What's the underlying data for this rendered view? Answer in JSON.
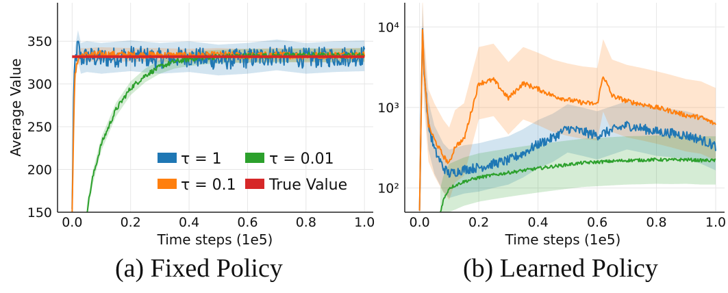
{
  "chart_data": [
    {
      "type": "line",
      "caption": "(a) Fixed Policy",
      "xlabel": "Time steps (1e5)",
      "ylabel": "Average Value",
      "xlim": [
        -0.05,
        1.03
      ],
      "ylim": [
        150,
        395
      ],
      "xticks": [
        0.0,
        0.2,
        0.4,
        0.6,
        0.8,
        1.0
      ],
      "xtick_labels": [
        "0.0",
        "0.2",
        "0.4",
        "0.6",
        "0.8",
        "1.0"
      ],
      "yticks": [
        150,
        200,
        250,
        300,
        350
      ],
      "ytick_labels": [
        "150",
        "200",
        "250",
        "300",
        "350"
      ],
      "grid": true,
      "legend": {
        "placement": "lower-right",
        "entries": [
          {
            "label": "τ = 1",
            "color": "#1f77b4"
          },
          {
            "label": "τ = 0.01",
            "color": "#2ca02c"
          },
          {
            "label": "τ = 0.1",
            "color": "#ff7f0e"
          },
          {
            "label": "True Value",
            "color": "#d62728"
          }
        ]
      },
      "series": [
        {
          "name": "τ = 1",
          "color": "#1f77b4",
          "x": [
            0.0,
            0.005,
            0.01,
            0.02,
            0.03,
            0.05,
            0.1,
            0.2,
            0.3,
            0.4,
            0.5,
            0.6,
            0.7,
            0.8,
            0.9,
            1.0
          ],
          "y": [
            150,
            280,
            325,
            345,
            330,
            332,
            330,
            333,
            330,
            332,
            328,
            330,
            334,
            330,
            332,
            333
          ]
        },
        {
          "name": "τ = 0.1",
          "color": "#ff7f0e",
          "x": [
            0.0,
            0.005,
            0.01,
            0.02,
            0.03,
            0.05,
            0.1,
            0.2,
            0.3,
            0.4,
            0.5,
            0.6,
            0.7,
            0.8,
            0.9,
            1.0
          ],
          "y": [
            150,
            250,
            310,
            330,
            334,
            334,
            335,
            334,
            334,
            333,
            334,
            333,
            334,
            333,
            334,
            334
          ]
        },
        {
          "name": "τ = 0.01",
          "color": "#2ca02c",
          "x": [
            0.05,
            0.07,
            0.1,
            0.15,
            0.2,
            0.25,
            0.3,
            0.35,
            0.4,
            0.45,
            0.5,
            0.6,
            0.7,
            0.8,
            0.9,
            1.0
          ],
          "y": [
            150,
            190,
            230,
            270,
            295,
            310,
            320,
            326,
            329,
            331,
            332,
            333,
            333,
            334,
            333,
            334
          ]
        },
        {
          "name": "True Value",
          "color": "#d62728",
          "x": [
            0.0,
            1.0
          ],
          "y": [
            332,
            332
          ]
        }
      ]
    },
    {
      "type": "line",
      "caption": "(b) Learned Policy",
      "xlabel": "Time steps (1e5)",
      "ylabel": "",
      "yscale": "log",
      "xlim": [
        -0.05,
        1.03
      ],
      "ylim": [
        50,
        20000
      ],
      "xticks": [
        0.0,
        0.2,
        0.4,
        0.6,
        0.8,
        1.0
      ],
      "xtick_labels": [
        "0.0",
        "0.2",
        "0.4",
        "0.6",
        "0.8",
        "1.0"
      ],
      "yticks": [
        100,
        1000,
        10000
      ],
      "ytick_labels": [
        "10²",
        "10³",
        "10⁴"
      ],
      "grid": true,
      "series": [
        {
          "name": "τ = 1",
          "color": "#1f77b4",
          "x": [
            0.0,
            0.01,
            0.015,
            0.03,
            0.05,
            0.08,
            0.1,
            0.15,
            0.2,
            0.25,
            0.3,
            0.35,
            0.4,
            0.45,
            0.5,
            0.55,
            0.6,
            0.65,
            0.7,
            0.75,
            0.8,
            0.85,
            0.9,
            0.95,
            1.0
          ],
          "y": [
            50,
            10000,
            3000,
            600,
            300,
            180,
            150,
            170,
            180,
            200,
            220,
            270,
            350,
            420,
            550,
            500,
            450,
            520,
            600,
            550,
            500,
            480,
            450,
            400,
            330
          ]
        },
        {
          "name": "τ = 0.1",
          "color": "#ff7f0e",
          "x": [
            0.0,
            0.01,
            0.015,
            0.03,
            0.05,
            0.08,
            0.1,
            0.12,
            0.15,
            0.2,
            0.25,
            0.3,
            0.35,
            0.4,
            0.45,
            0.5,
            0.55,
            0.6,
            0.62,
            0.65,
            0.7,
            0.75,
            0.8,
            0.85,
            0.9,
            0.95,
            1.0
          ],
          "y": [
            50,
            9000,
            3000,
            600,
            400,
            250,
            200,
            330,
            400,
            2000,
            2200,
            1300,
            2000,
            1700,
            1400,
            1250,
            1150,
            1100,
            2500,
            1400,
            1200,
            1100,
            1000,
            900,
            800,
            750,
            620
          ]
        },
        {
          "name": "τ = 0.01",
          "color": "#2ca02c",
          "x": [
            0.07,
            0.08,
            0.1,
            0.15,
            0.2,
            0.25,
            0.3,
            0.35,
            0.4,
            0.45,
            0.5,
            0.55,
            0.6,
            0.65,
            0.7,
            0.75,
            0.8,
            0.85,
            0.9,
            0.95,
            1.0
          ],
          "y": [
            50,
            70,
            100,
            120,
            135,
            145,
            155,
            165,
            175,
            185,
            195,
            205,
            210,
            215,
            220,
            222,
            225,
            223,
            225,
            220,
            220
          ]
        }
      ]
    }
  ]
}
